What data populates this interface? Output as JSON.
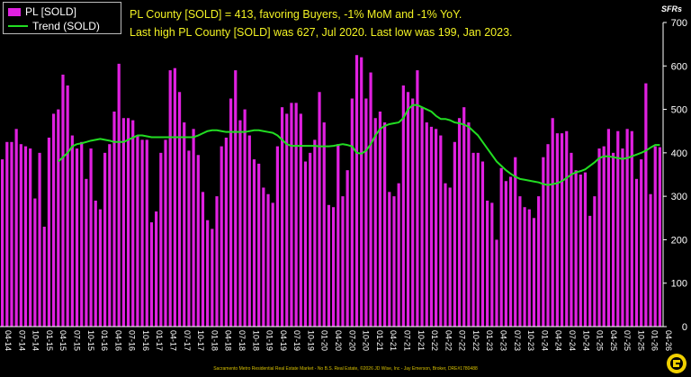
{
  "headline": {
    "line1": "PL County [SOLD] = 413, favoring Buyers, -1% MoM and -1% YoY.",
    "line2": "Last high PL County [SOLD] was 627, Jul 2020. Last low was 199, Jan 2023."
  },
  "unit_label": "SFRs",
  "footer": "Sacramento Metro Residential Real Estate Market - No B.S. Real Estate, ©2026 JD Wise, Inc - Jay Emerson, Broker, DRE#1780488",
  "colors": {
    "bars": "#e020e0",
    "trend": "#22dd22",
    "text": "#f2f224",
    "background": "#000000"
  },
  "logo_icon": "yellow-gear-logo-icon",
  "chart_data": {
    "type": "bar",
    "yaxis_position": "right",
    "ylim": [
      0,
      700
    ],
    "yticks": [
      0,
      100,
      200,
      300,
      400,
      500,
      600,
      700
    ],
    "grid": false,
    "legend_position": "top-left",
    "x_tick_labels": [
      "04-14",
      "07-14",
      "10-14",
      "01-15",
      "04-15",
      "07-15",
      "10-15",
      "01-16",
      "04-16",
      "07-16",
      "10-16",
      "01-17",
      "04-17",
      "07-17",
      "10-17",
      "01-18",
      "04-18",
      "07-18",
      "10-18",
      "01-19",
      "04-19",
      "07-19",
      "10-19",
      "01-20",
      "04-20",
      "07-20",
      "10-20",
      "01-21",
      "04-21",
      "07-21",
      "10-21",
      "01-22",
      "04-22",
      "07-22",
      "10-22",
      "01-23",
      "04-23",
      "07-23",
      "10-23",
      "01-24",
      "04-24",
      "07-24",
      "10-24",
      "01-25",
      "04-25",
      "07-25",
      "10-25",
      "01-26",
      "04-26"
    ],
    "series": [
      {
        "name": "PL [SOLD]",
        "type": "bar",
        "values": [
          385,
          425,
          425,
          455,
          420,
          415,
          410,
          295,
          400,
          230,
          435,
          490,
          500,
          580,
          555,
          440,
          410,
          425,
          340,
          410,
          290,
          270,
          400,
          420,
          495,
          605,
          480,
          480,
          475,
          440,
          430,
          430,
          240,
          265,
          400,
          430,
          590,
          595,
          540,
          470,
          405,
          455,
          395,
          310,
          245,
          225,
          300,
          415,
          435,
          525,
          590,
          475,
          500,
          440,
          385,
          375,
          320,
          305,
          285,
          415,
          505,
          490,
          515,
          515,
          490,
          380,
          400,
          430,
          540,
          470,
          280,
          275,
          420,
          300,
          360,
          525,
          625,
          620,
          525,
          585,
          480,
          495,
          470,
          310,
          300,
          330,
          555,
          540,
          525,
          590,
          505,
          470,
          460,
          455,
          440,
          330,
          320,
          425,
          480,
          505,
          470,
          400,
          400,
          380,
          290,
          285,
          200,
          365,
          335,
          345,
          390,
          300,
          275,
          270,
          250,
          300,
          390,
          420,
          480,
          445,
          445,
          450,
          400,
          360,
          350,
          355,
          255,
          300,
          410,
          415,
          455,
          400,
          450,
          410,
          455,
          450,
          340,
          385,
          560,
          305,
          415,
          413
        ]
      },
      {
        "name": "Trend (SOLD)",
        "type": "line",
        "values": [
          null,
          null,
          null,
          null,
          null,
          null,
          null,
          null,
          null,
          null,
          null,
          null,
          380,
          390,
          400,
          415,
          420,
          422,
          425,
          428,
          430,
          432,
          430,
          428,
          425,
          425,
          425,
          430,
          435,
          440,
          440,
          438,
          436,
          436,
          436,
          436,
          436,
          436,
          436,
          436,
          436,
          436,
          440,
          445,
          450,
          452,
          452,
          450,
          448,
          448,
          448,
          448,
          448,
          450,
          452,
          452,
          450,
          448,
          446,
          440,
          430,
          420,
          416,
          416,
          416,
          416,
          416,
          416,
          415,
          415,
          415,
          416,
          418,
          420,
          418,
          415,
          400,
          398,
          405,
          420,
          440,
          455,
          462,
          466,
          468,
          470,
          480,
          500,
          510,
          510,
          505,
          500,
          495,
          485,
          478,
          478,
          475,
          470,
          468,
          465,
          460,
          450,
          440,
          425,
          410,
          395,
          380,
          370,
          360,
          352,
          345,
          340,
          338,
          336,
          334,
          332,
          328,
          326,
          328,
          330,
          335,
          342,
          350,
          355,
          358,
          362,
          370,
          378,
          388,
          392,
          392,
          390,
          388,
          386,
          388,
          392,
          396,
          400,
          405,
          412,
          418,
          418
        ]
      }
    ]
  }
}
